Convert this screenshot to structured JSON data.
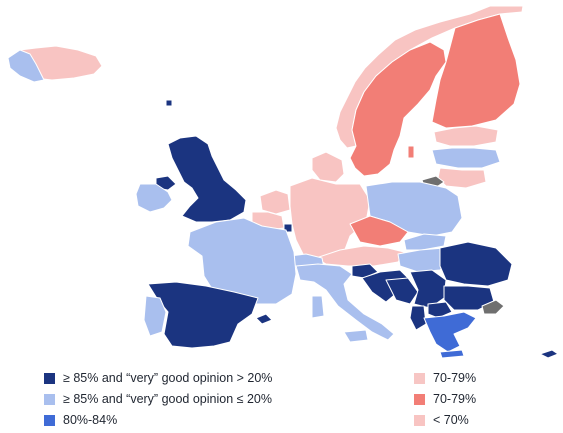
{
  "colors": {
    "dark_blue": "#1b3480",
    "light_blue": "#a9bfee",
    "mid_blue": "#3f6bd6",
    "light_pink": "#f7c6c4",
    "salmon": "#f27e76",
    "pale_pink": "#f8c4c2",
    "no_data": "#6f6f6f"
  },
  "legend": [
    {
      "label": "≥ 85% and “very” good opinion > 20%",
      "color": "#1b3480"
    },
    {
      "label": "≥ 85% and “very” good opinion ≤ 20%",
      "color": "#a9bfee"
    },
    {
      "label": "80%-84%",
      "color": "#3f6bd6"
    },
    {
      "label": "70-79%",
      "color": "#f7c6c4"
    },
    {
      "label": "70-79%",
      "color": "#f27e76"
    },
    {
      "label": "< 70%",
      "color": "#f8c4c2"
    }
  ],
  "regions": [
    {
      "name": "norway",
      "category": "< 70%"
    },
    {
      "name": "sweden",
      "category": "70-79%"
    },
    {
      "name": "finland",
      "category": "70-79%"
    },
    {
      "name": "iceland",
      "category": "< 70%"
    },
    {
      "name": "estonia",
      "category": "< 70%"
    },
    {
      "name": "latvia",
      "category": "≥ 85% and “very” good opinion ≤ 20%"
    },
    {
      "name": "lithuania",
      "category": "< 70%"
    },
    {
      "name": "kaliningrad",
      "category": "no data"
    },
    {
      "name": "united-kingdom",
      "category": "≥ 85% and “very” good opinion > 20%"
    },
    {
      "name": "ireland",
      "category": "≥ 85% and “very” good opinion ≤ 20%"
    },
    {
      "name": "northern-ireland",
      "category": "≥ 85% and “very” good opinion > 20%"
    },
    {
      "name": "denmark",
      "category": "< 70%"
    },
    {
      "name": "netherlands",
      "category": "< 70%"
    },
    {
      "name": "belgium",
      "category": "< 70%"
    },
    {
      "name": "luxembourg",
      "category": "≥ 85% and “very” good opinion > 20%"
    },
    {
      "name": "germany",
      "category": "< 70%"
    },
    {
      "name": "poland",
      "category": "≥ 85% and “very” good opinion ≤ 20%"
    },
    {
      "name": "czechia",
      "category": "70-79%"
    },
    {
      "name": "slovakia",
      "category": "≥ 85% and “very” good opinion ≤ 20%"
    },
    {
      "name": "austria",
      "category": "< 70%"
    },
    {
      "name": "hungary",
      "category": "≥ 85% and “very” good opinion ≤ 20%"
    },
    {
      "name": "switzerland",
      "category": "≥ 85% and “very” good opinion ≤ 20%"
    },
    {
      "name": "france",
      "category": "≥ 85% and “very” good opinion ≤ 20%"
    },
    {
      "name": "spain",
      "category": "≥ 85% and “very” good opinion > 20%"
    },
    {
      "name": "portugal",
      "category": "≥ 85% and “very” good opinion ≤ 20%"
    },
    {
      "name": "italy",
      "category": "≥ 85% and “very” good opinion ≤ 20%"
    },
    {
      "name": "slovenia",
      "category": "≥ 85% and “very” good opinion > 20%"
    },
    {
      "name": "croatia",
      "category": "≥ 85% and “very” good opinion > 20%"
    },
    {
      "name": "bosnia",
      "category": "≥ 85% and “very” good opinion > 20%"
    },
    {
      "name": "serbia",
      "category": "≥ 85% and “very” good opinion > 20%"
    },
    {
      "name": "romania",
      "category": "≥ 85% and “very” good opinion > 20%"
    },
    {
      "name": "bulgaria",
      "category": "≥ 85% and “very” good opinion > 20%"
    },
    {
      "name": "greece",
      "category": "80%-84%"
    },
    {
      "name": "turkey-europe",
      "category": "no data"
    },
    {
      "name": "cyprus",
      "category": "≥ 85% and “very” good opinion > 20%"
    }
  ]
}
